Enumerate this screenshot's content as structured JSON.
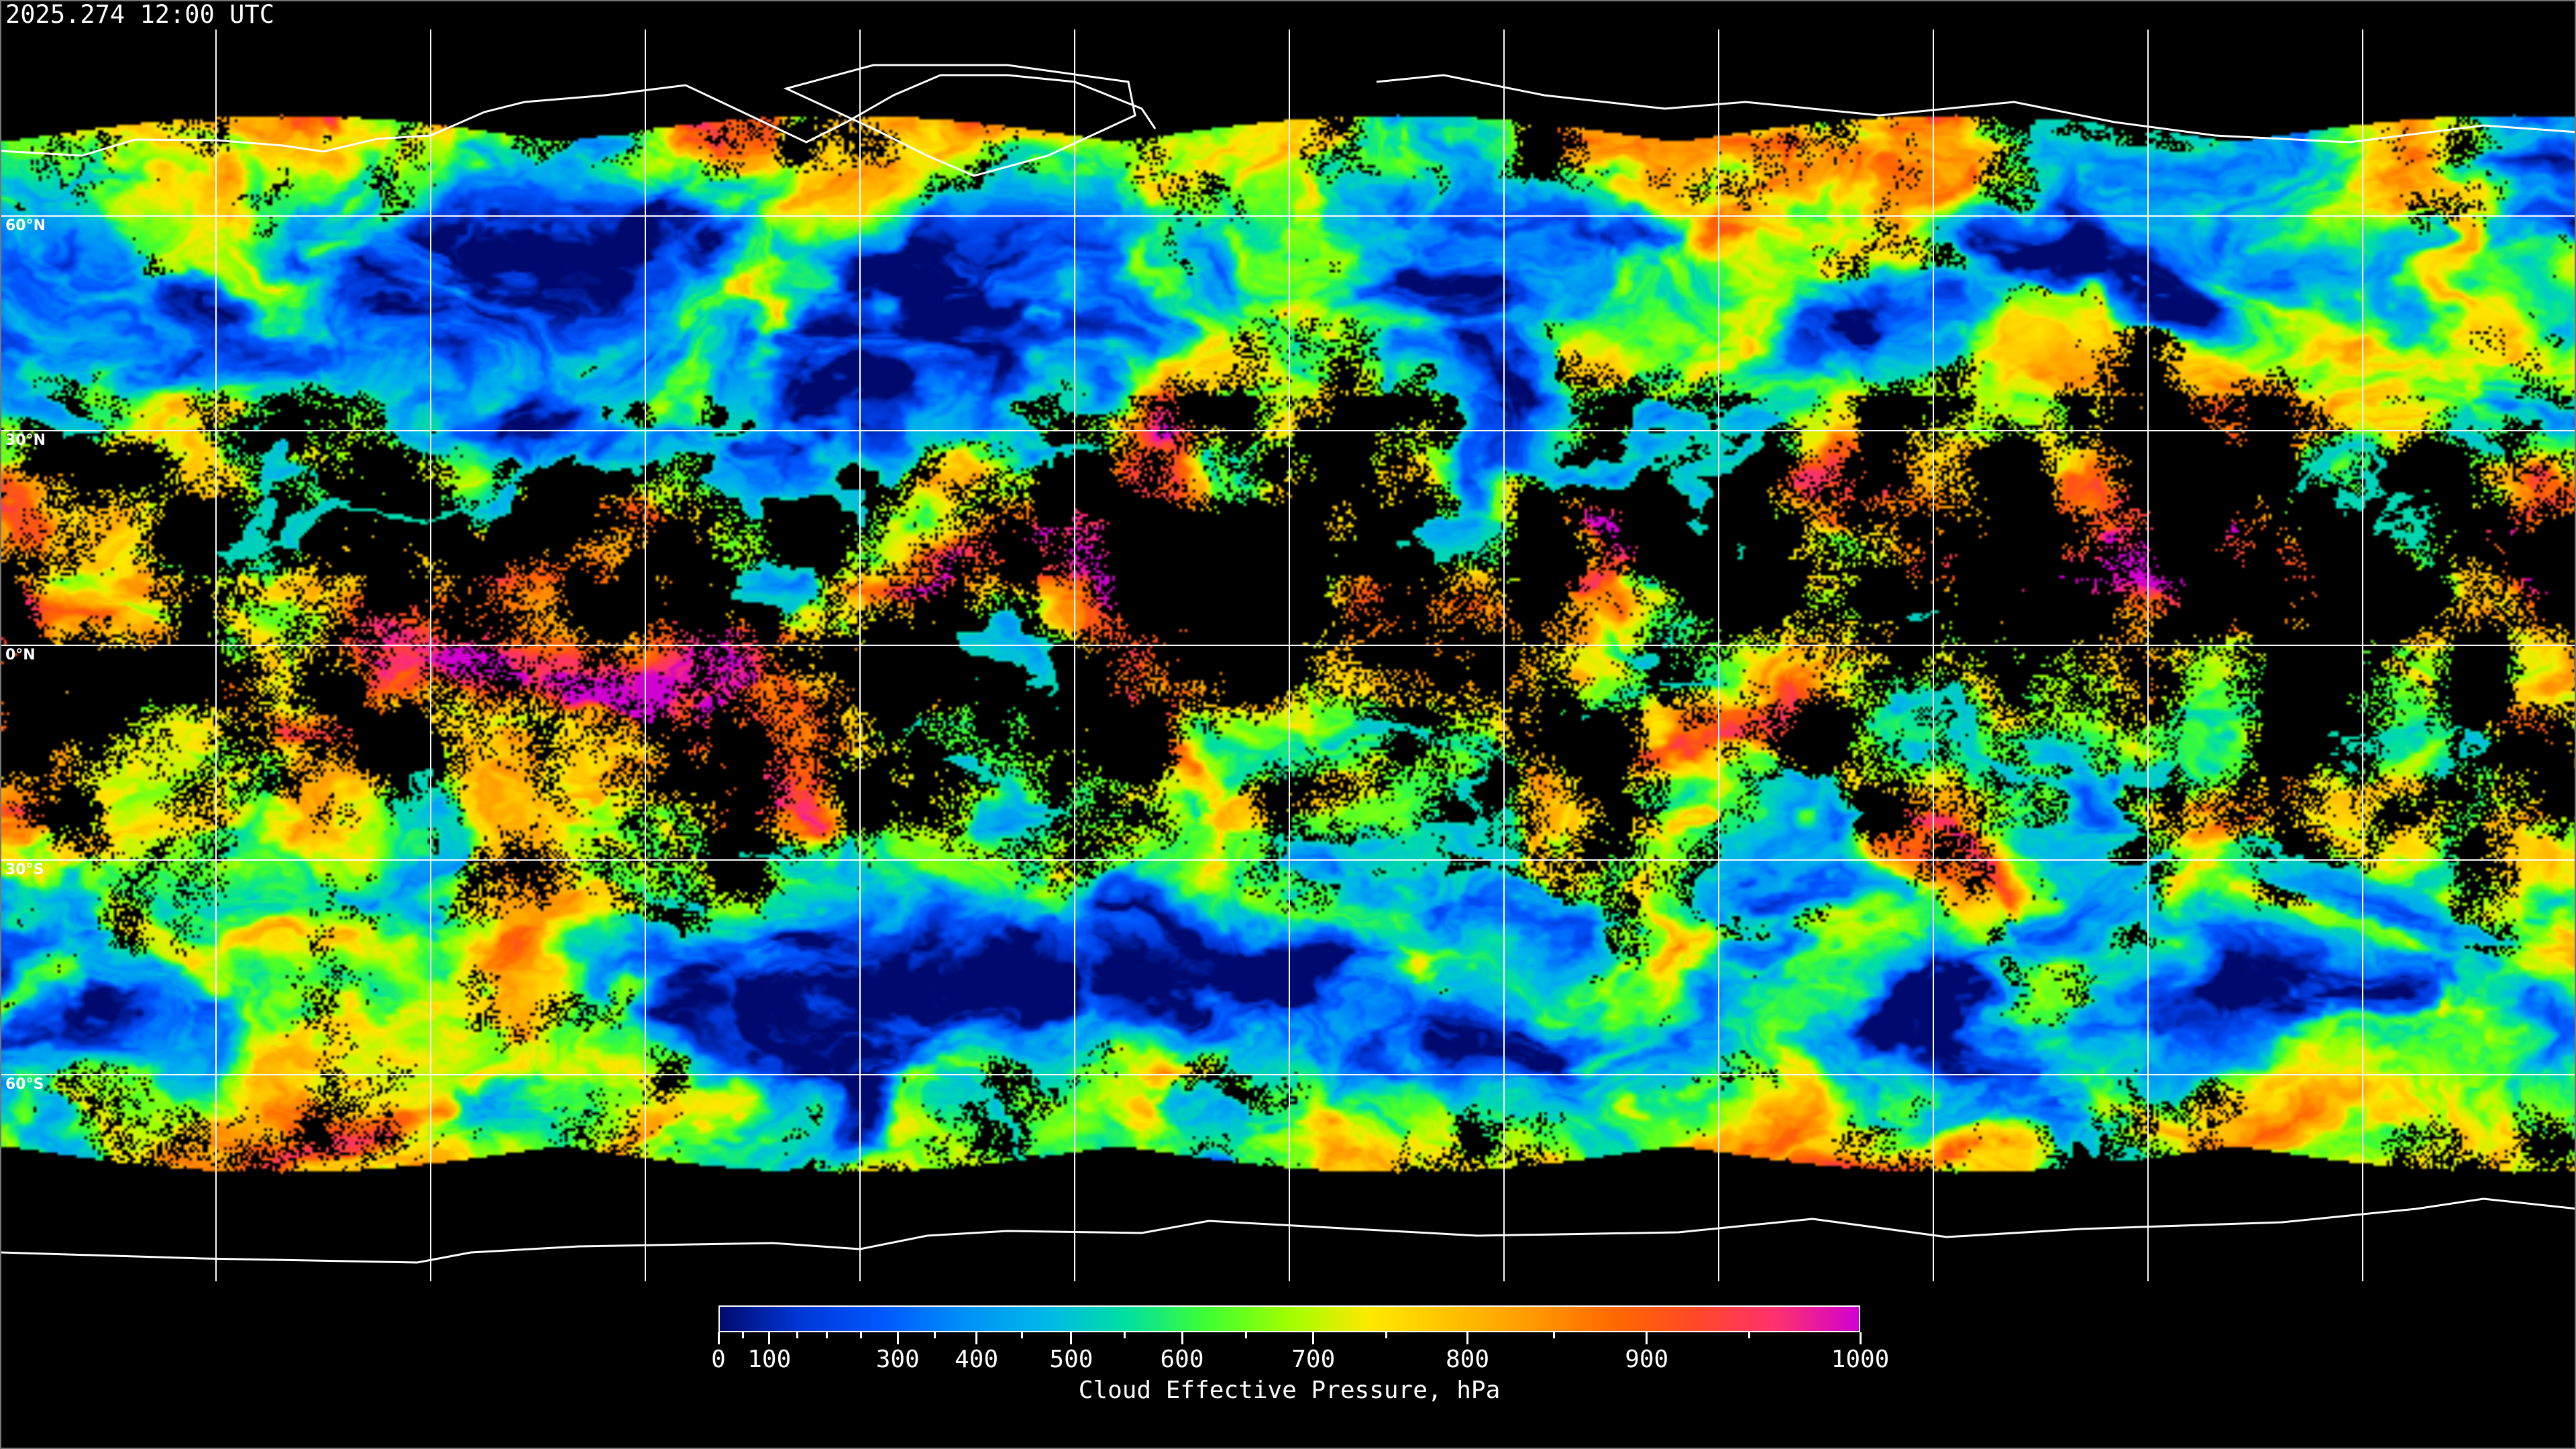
{
  "timestamp": "2025.274 12:00 UTC",
  "latitude_labels": [
    "60°N",
    "30°N",
    "0°N",
    "30°S",
    "60°S"
  ],
  "colorbar": {
    "title": "Cloud Effective Pressure, hPa",
    "tick_labels": [
      "0",
      "100",
      "300",
      "400",
      "500",
      "600",
      "700",
      "800",
      "900",
      "1000"
    ],
    "range": [
      0,
      1000
    ],
    "colors": [
      "#000a6e",
      "#0038d8",
      "#0058ff",
      "#0090f8",
      "#00b8e8",
      "#00e0a0",
      "#40ff30",
      "#a0ff00",
      "#ffe800",
      "#ffc000",
      "#ff9800",
      "#ff6800",
      "#ff4828",
      "#ff3070",
      "#d000d0"
    ]
  },
  "map": {
    "projection": "equirectangular",
    "gridline_spacing_degrees": 30,
    "no_data_color": "#000000",
    "coastline_color": "#ffffff"
  }
}
